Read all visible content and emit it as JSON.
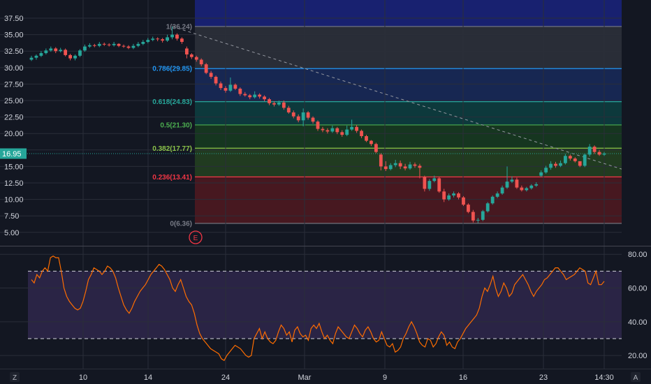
{
  "chart_data": [
    {
      "type": "candlestick",
      "y_ticks": [
        "37.50",
        "35.00",
        "32.50",
        "30.00",
        "27.50",
        "25.00",
        "22.50",
        "20.00",
        "17.50",
        "15.00",
        "12.50",
        "10.00",
        "7.50",
        "5.00"
      ],
      "ylim": [
        3.6,
        39.2
      ],
      "x_ticks": [
        "10",
        "14",
        "24",
        "Mar",
        "9",
        "16",
        "23",
        "14:30"
      ],
      "last_price": "16.95",
      "last_price_value": 16.95,
      "fib_levels": [
        {
          "label": "1(36.24)",
          "value": 36.24,
          "color": "#787b86"
        },
        {
          "label": "0.786(29.85)",
          "value": 29.85,
          "color": "#2196f3"
        },
        {
          "label": "0.618(24.83)",
          "value": 24.83,
          "color": "#26a69a"
        },
        {
          "label": "0.5(21.30)",
          "value": 21.3,
          "color": "#4caf50"
        },
        {
          "label": "0.382(17.77)",
          "value": 17.77,
          "color": "#8bc34a"
        },
        {
          "label": "0.236(13.41)",
          "value": 13.41,
          "color": "#f23645"
        },
        {
          "label": "0(6.36)",
          "value": 6.36,
          "color": "#787b86"
        }
      ],
      "event_marker": "E",
      "closes": [
        31.5,
        31.8,
        32.2,
        32.6,
        32.9,
        32.5,
        32.7,
        31.9,
        31.4,
        31.8,
        32.6,
        33.2,
        33.4,
        33.3,
        33.6,
        33.5,
        33.4,
        33.6,
        33.3,
        33.2,
        33.0,
        33.3,
        33.6,
        33.9,
        34.2,
        34.4,
        34.3,
        34.1,
        34.6,
        35.0,
        34.4,
        33.9,
        32.0,
        31.6,
        31.2,
        30.5,
        29.2,
        28.6,
        27.6,
        26.9,
        26.5,
        27.4,
        26.8,
        26.0,
        25.8,
        25.5,
        25.9,
        25.6,
        25.2,
        24.6,
        24.4,
        24.7,
        23.9,
        23.2,
        22.6,
        22.0,
        23.2,
        22.4,
        21.8,
        20.7,
        20.5,
        20.3,
        20.8,
        20.2,
        19.8,
        20.6,
        21.0,
        20.4,
        19.6,
        18.9,
        18.4,
        17.2,
        15.0,
        14.6,
        15.2,
        15.5,
        15.0,
        14.7,
        15.3,
        15.1,
        14.8,
        11.6,
        12.8,
        13.2,
        11.2,
        10.0,
        10.6,
        10.9,
        10.3,
        9.2,
        8.1,
        6.8,
        6.9,
        8.2,
        9.4,
        10.4,
        10.9,
        11.8,
        12.7,
        13.0,
        11.8,
        11.4,
        11.7,
        12.1,
        12.3,
        14.1,
        14.8,
        15.4,
        15.1,
        15.5,
        16.6,
        16.2,
        15.8,
        15.1,
        16.8,
        18.0,
        17.2,
        16.8,
        16.95
      ],
      "opens": [
        31.2,
        31.5,
        31.8,
        32.2,
        32.6,
        32.9,
        32.5,
        32.7,
        31.9,
        31.4,
        31.8,
        32.6,
        33.2,
        33.4,
        33.3,
        33.6,
        33.5,
        33.4,
        33.6,
        33.3,
        33.2,
        33.0,
        33.3,
        33.6,
        33.9,
        34.2,
        34.4,
        34.3,
        34.1,
        34.6,
        35.0,
        34.4,
        32.9,
        32.0,
        31.6,
        31.2,
        30.5,
        29.2,
        28.6,
        27.6,
        26.9,
        26.5,
        27.4,
        26.8,
        26.0,
        25.8,
        25.5,
        25.9,
        25.6,
        25.2,
        24.6,
        24.4,
        24.7,
        23.9,
        23.2,
        22.6,
        22.0,
        23.2,
        22.4,
        21.8,
        20.7,
        20.5,
        20.3,
        20.8,
        20.2,
        19.8,
        20.6,
        21.0,
        20.4,
        19.6,
        18.9,
        18.4,
        16.8,
        15.0,
        14.6,
        15.2,
        15.5,
        15.0,
        14.7,
        15.3,
        15.1,
        13.4,
        11.6,
        12.8,
        13.2,
        11.2,
        10.0,
        10.6,
        10.9,
        10.3,
        9.2,
        8.1,
        6.8,
        6.9,
        8.2,
        9.4,
        10.4,
        10.9,
        11.8,
        12.7,
        13.0,
        11.8,
        11.4,
        11.7,
        12.1,
        13.6,
        14.1,
        14.8,
        15.4,
        15.1,
        15.5,
        16.6,
        16.2,
        15.8,
        15.1,
        16.8,
        18.0,
        17.2,
        16.8
      ],
      "highs": [
        31.8,
        32.0,
        32.5,
        32.9,
        33.2,
        33.1,
        33.0,
        32.9,
        32.1,
        32.0,
        32.8,
        33.5,
        33.7,
        33.6,
        33.9,
        33.8,
        33.7,
        33.9,
        33.7,
        33.5,
        33.4,
        33.6,
        33.9,
        34.2,
        34.5,
        34.7,
        34.6,
        34.5,
        35.0,
        36.24,
        35.2,
        34.6,
        33.2,
        32.2,
        31.8,
        31.4,
        30.7,
        29.5,
        28.8,
        27.9,
        27.2,
        28.5,
        27.6,
        27.0,
        26.3,
        26.0,
        26.4,
        26.1,
        25.8,
        25.4,
        24.9,
        25.0,
        25.0,
        24.2,
        23.5,
        22.9,
        23.8,
        23.4,
        22.6,
        22.0,
        21.0,
        20.8,
        21.2,
        21.0,
        20.5,
        21.2,
        22.1,
        21.3,
        20.6,
        19.8,
        19.0,
        18.6,
        17.0,
        15.8,
        15.5,
        16.0,
        15.9,
        15.4,
        15.7,
        15.6,
        15.4,
        13.6,
        13.1,
        13.6,
        13.4,
        11.6,
        10.9,
        11.2,
        11.1,
        10.5,
        9.4,
        8.4,
        7.2,
        8.4,
        9.6,
        10.6,
        11.2,
        12.1,
        15.0,
        13.5,
        13.3,
        12.1,
        11.9,
        12.3,
        12.6,
        14.4,
        15.1,
        15.8,
        15.7,
        15.9,
        16.9,
        16.8,
        16.4,
        15.6,
        17.0,
        18.4,
        18.2,
        17.5,
        17.2
      ],
      "lows": [
        31.0,
        31.2,
        31.6,
        32.0,
        32.4,
        32.2,
        32.3,
        31.7,
        31.1,
        31.1,
        31.6,
        32.4,
        33.0,
        33.1,
        33.1,
        33.3,
        33.2,
        33.2,
        33.1,
        33.0,
        32.8,
        32.8,
        33.1,
        33.4,
        33.7,
        34.0,
        34.0,
        33.8,
        33.9,
        34.3,
        34.1,
        33.6,
        31.4,
        31.3,
        30.9,
        30.2,
        29.0,
        28.3,
        27.3,
        26.6,
        26.2,
        26.3,
        26.6,
        25.7,
        25.6,
        25.2,
        25.3,
        25.3,
        24.9,
        24.3,
        24.1,
        24.2,
        23.6,
        23.0,
        22.3,
        21.7,
        21.1,
        22.1,
        21.5,
        20.4,
        20.2,
        20.0,
        20.1,
        19.9,
        19.5,
        19.6,
        20.4,
        20.1,
        19.3,
        18.7,
        18.1,
        17.0,
        14.4,
        14.3,
        14.4,
        14.9,
        14.6,
        14.4,
        14.5,
        14.8,
        13.2,
        11.2,
        11.3,
        12.6,
        11.0,
        9.6,
        9.8,
        10.3,
        10.0,
        9.0,
        7.9,
        6.5,
        6.4,
        6.7,
        8.0,
        9.2,
        10.2,
        10.7,
        11.6,
        12.5,
        11.6,
        11.2,
        11.2,
        11.5,
        11.9,
        13.4,
        13.9,
        14.5,
        14.8,
        14.9,
        15.3,
        15.9,
        15.6,
        14.9,
        14.9,
        16.5,
        16.9,
        16.6,
        16.6
      ]
    },
    {
      "type": "line",
      "y_ticks": [
        "80.00",
        "60.00",
        "40.00",
        "20.00"
      ],
      "ylim": [
        13,
        83
      ],
      "upper_band": 70,
      "lower_band": 30,
      "series": [
        {
          "values": [
            65,
            63,
            68,
            66,
            70,
            72,
            70,
            78,
            79,
            78,
            78,
            70,
            60,
            55,
            52,
            50,
            48,
            47,
            48,
            52,
            58,
            65,
            68,
            72,
            71,
            70,
            68,
            70,
            73,
            72,
            70,
            66,
            60,
            55,
            50,
            47,
            45,
            48,
            52,
            55,
            58,
            60,
            62,
            65,
            68,
            70,
            72,
            74,
            73,
            71,
            68,
            65,
            60,
            58,
            62,
            65,
            60,
            55,
            52,
            50,
            45,
            38,
            33,
            30,
            28,
            26,
            24,
            23,
            22,
            21,
            18,
            17,
            20,
            22,
            24,
            26,
            25,
            24,
            22,
            20,
            19,
            20,
            30,
            33,
            36,
            30,
            34,
            30,
            28,
            27,
            29,
            34,
            38,
            36,
            32,
            34,
            28,
            35,
            37,
            33,
            31,
            32,
            29,
            36,
            38,
            36,
            39,
            34,
            30,
            32,
            29,
            27,
            33,
            37,
            35,
            33,
            31,
            30,
            34,
            38,
            36,
            33,
            31,
            35,
            37,
            34,
            30,
            28,
            29,
            34,
            30,
            26,
            25,
            27,
            22,
            23,
            25,
            30,
            33,
            37,
            40,
            37,
            33,
            28,
            26,
            25,
            30,
            29,
            25,
            27,
            31,
            34,
            32,
            26,
            28,
            25,
            24,
            28,
            30,
            33,
            36,
            38,
            40,
            42,
            44,
            48,
            55,
            60,
            58,
            62,
            67,
            60,
            55,
            58,
            63,
            60,
            55,
            57,
            62,
            64,
            66,
            68,
            65,
            62,
            58,
            55,
            58,
            60,
            62,
            65,
            66,
            68,
            70,
            72,
            72,
            70,
            68,
            65,
            66,
            67,
            68,
            70,
            72,
            71,
            70,
            63,
            62,
            66,
            70,
            62,
            62,
            64
          ]
        }
      ]
    }
  ]
}
